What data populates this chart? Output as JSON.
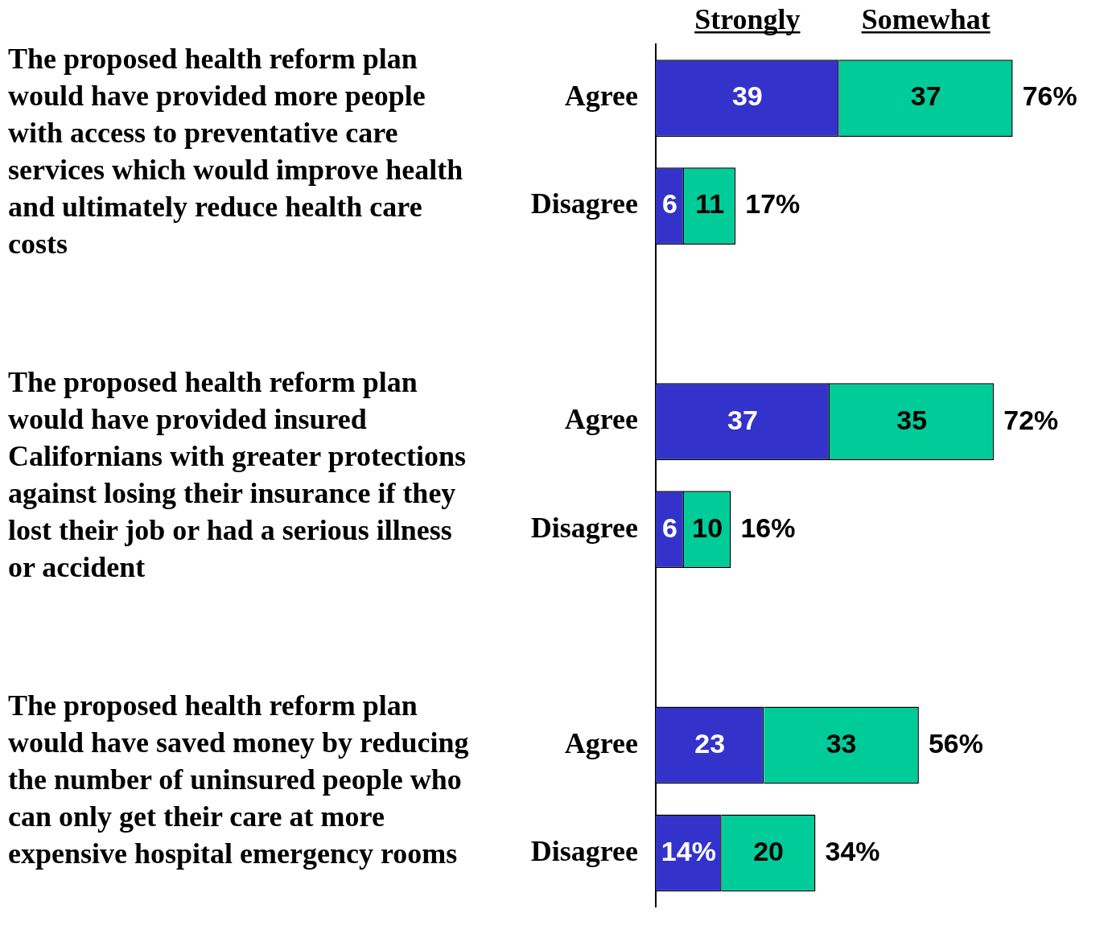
{
  "chart_data": {
    "type": "bar",
    "orientation": "horizontal",
    "stacked": true,
    "categories": [
      "Agree",
      "Disagree",
      null,
      "Agree",
      "Disagree",
      null,
      "Agree",
      "Disagree"
    ],
    "series": [
      {
        "name": "Strongly",
        "color": "#3333cc",
        "values": [
          39,
          6,
          null,
          37,
          6,
          null,
          23,
          14
        ],
        "value_labels": [
          "39",
          "6",
          null,
          "37",
          "6",
          null,
          "23",
          "14%"
        ]
      },
      {
        "name": "Somewhat",
        "color": "#00cc99",
        "values": [
          37,
          11,
          null,
          35,
          10,
          null,
          33,
          20
        ],
        "value_labels": [
          "37",
          "11",
          null,
          "35",
          "10",
          null,
          "33",
          "20"
        ]
      }
    ],
    "totals": [
      "76%",
      "17%",
      null,
      "72%",
      "16%",
      null,
      "56%",
      "34%"
    ],
    "annotations": [
      "The proposed health reform plan would have provided more people with access to preventative care services which would improve health and ultimately reduce health care costs",
      "The proposed health reform plan would have provided insured Californians with greater protections against losing their insurance if they lost their job or had a serious illness or accident",
      "The proposed health reform plan would have saved money by reducing the number of uninsured people who can only get their care at more expensive hospital emergency rooms"
    ],
    "legend": "top",
    "grid": false,
    "tick_labels": "y"
  }
}
